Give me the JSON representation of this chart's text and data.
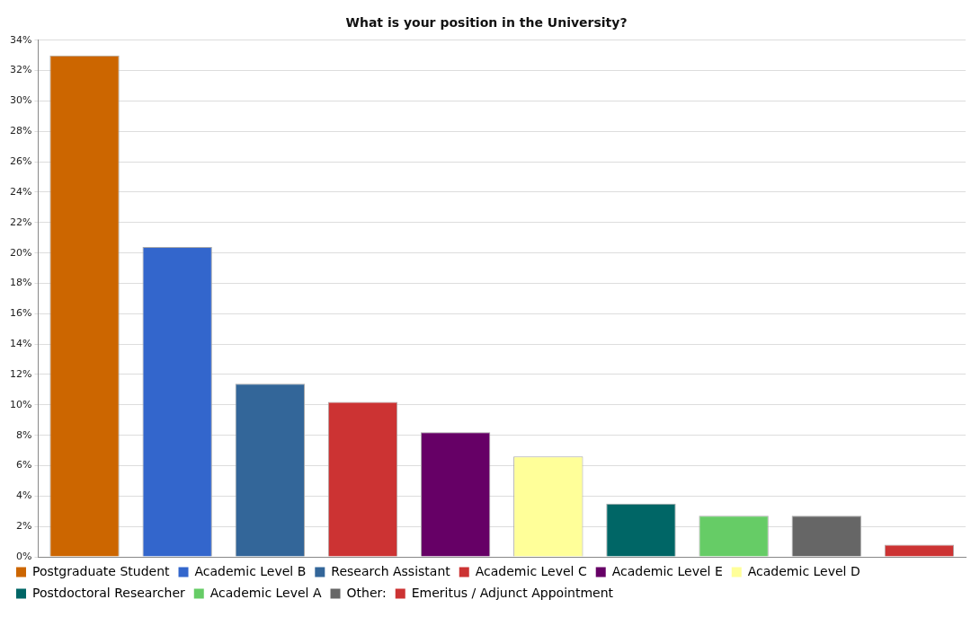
{
  "chart_data": {
    "type": "bar",
    "title": "What is your position in the University?",
    "categories": [
      null,
      null,
      null,
      null,
      null,
      null,
      null,
      null,
      null,
      null
    ],
    "series": [
      {
        "name": "Postgraduate Student",
        "color": "#cc6600",
        "values": [
          33,
          null,
          null,
          null,
          null,
          null,
          null,
          null,
          null,
          null
        ]
      },
      {
        "name": "Academic Level B",
        "color": "#3366cc",
        "values": [
          null,
          20.4,
          null,
          null,
          null,
          null,
          null,
          null,
          null,
          null
        ]
      },
      {
        "name": "Research Assistant",
        "color": "#336699",
        "values": [
          null,
          null,
          11.4,
          null,
          null,
          null,
          null,
          null,
          null,
          null
        ]
      },
      {
        "name": "Academic Level C",
        "color": "#cc3333",
        "values": [
          null,
          null,
          null,
          10.2,
          null,
          null,
          null,
          null,
          null,
          null
        ]
      },
      {
        "name": "Academic Level E",
        "color": "#660066",
        "values": [
          null,
          null,
          null,
          null,
          8.2,
          null,
          null,
          null,
          null,
          null
        ]
      },
      {
        "name": "Academic Level D",
        "color": "#ffff99",
        "values": [
          null,
          null,
          null,
          null,
          null,
          6.6,
          null,
          null,
          null,
          null
        ]
      },
      {
        "name": "Postdoctoral Researcher",
        "color": "#006666",
        "values": [
          null,
          null,
          null,
          null,
          null,
          null,
          3.5,
          null,
          null,
          null
        ]
      },
      {
        "name": "Academic Level A",
        "color": "#66cc66",
        "values": [
          null,
          null,
          null,
          null,
          null,
          null,
          null,
          2.7,
          null,
          null
        ]
      },
      {
        "name": "Other:",
        "color": "#666666",
        "values": [
          null,
          null,
          null,
          null,
          null,
          null,
          null,
          null,
          2.7,
          null
        ]
      },
      {
        "name": "Emeritus / Adjunct Appointment",
        "color": "#cc3333",
        "values": [
          null,
          null,
          null,
          null,
          null,
          null,
          null,
          null,
          null,
          0.8
        ]
      }
    ],
    "ylim": [
      0,
      34
    ],
    "yticks": [
      {
        "value": 0,
        "label": "0%"
      },
      {
        "value": 2,
        "label": "2%"
      },
      {
        "value": 4,
        "label": "4%"
      },
      {
        "value": 6,
        "label": "6%"
      },
      {
        "value": 8,
        "label": "8%"
      },
      {
        "value": 10,
        "label": "10%"
      },
      {
        "value": 12,
        "label": "12%"
      },
      {
        "value": 14,
        "label": "14%"
      },
      {
        "value": 16,
        "label": "16%"
      },
      {
        "value": 18,
        "label": "18%"
      },
      {
        "value": 20,
        "label": "20%"
      },
      {
        "value": 22,
        "label": "22%"
      },
      {
        "value": 24,
        "label": "24%"
      },
      {
        "value": 26,
        "label": "26%"
      },
      {
        "value": 28,
        "label": "28%"
      },
      {
        "value": 30,
        "label": "30%"
      },
      {
        "value": 32,
        "label": "32%"
      },
      {
        "value": 34,
        "label": "34%"
      }
    ],
    "grid": "y",
    "legend": "bottom",
    "tick_labels": "y"
  }
}
